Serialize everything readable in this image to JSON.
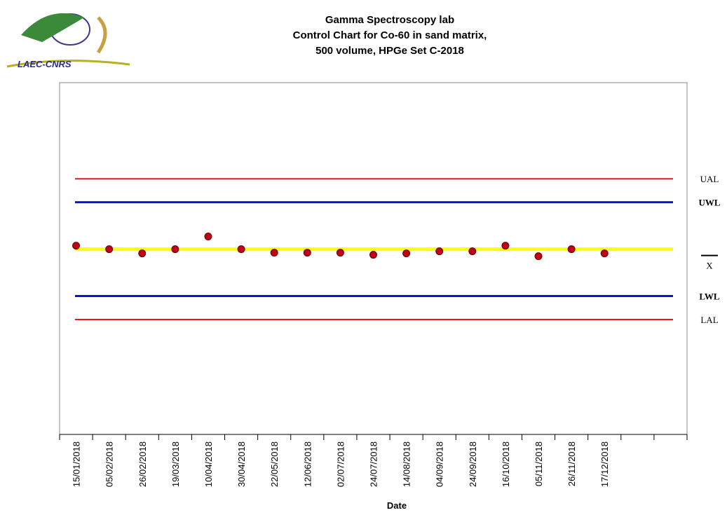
{
  "logo_text": "LAEC-CNRS",
  "chart_data": {
    "type": "control",
    "title": [
      "Gamma Spectroscopy lab",
      "Control Chart for Co-60 in sand matrix,",
      "500 volume, HPGe Set C-2018"
    ],
    "xlabel": "Date",
    "categories": [
      "15/01/2018",
      "05/02/2018",
      "26/02/2018",
      "19/03/2018",
      "10/04/2018",
      "30/04/2018",
      "22/05/2018",
      "12/06/2018",
      "02/07/2018",
      "24/07/2018",
      "14/08/2018",
      "04/09/2018",
      "24/09/2018",
      "16/10/2018",
      "05/11/2018",
      "26/11/2018",
      "17/12/2018",
      null,
      null
    ],
    "values": [
      0.15,
      0,
      -0.18,
      0,
      0.54,
      0,
      -0.15,
      -0.15,
      -0.15,
      -0.24,
      -0.18,
      -0.09,
      -0.09,
      0.15,
      -0.3,
      0,
      -0.18,
      null,
      null
    ],
    "color": "#c00018",
    "limits": [
      {
        "name": "UAL",
        "value": 3,
        "color": "#e8141c"
      },
      {
        "name": "UWL",
        "value": 2,
        "color": "#0a14d8"
      },
      {
        "name": "X",
        "value": 0,
        "color": "#ffff10"
      },
      {
        "name": "LWL",
        "value": -2,
        "color": "#0a14d8"
      },
      {
        "name": "LAL",
        "value": -3,
        "color": "#e8141c"
      }
    ],
    "ylim": [
      -7.9,
      7.1
    ]
  }
}
